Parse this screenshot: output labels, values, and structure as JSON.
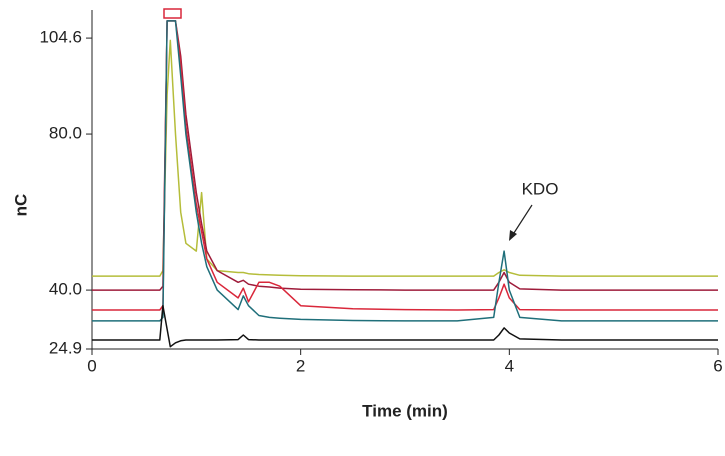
{
  "chart_data": {
    "type": "line",
    "xlabel": "Time (min)",
    "ylabel": "nC",
    "annotation": "KDO",
    "x": [
      0,
      0.65,
      0.68,
      0.72,
      0.75,
      0.8,
      0.85,
      0.9,
      1.0,
      1.05,
      1.1,
      1.2,
      1.4,
      1.45,
      1.5,
      1.6,
      1.7,
      1.8,
      2.0,
      2.5,
      3.0,
      3.5,
      3.85,
      3.9,
      3.95,
      4.0,
      4.1,
      4.5,
      5.0,
      6.0
    ],
    "series": [
      {
        "color": "#b5bd3a",
        "values": [
          43.6,
          43.6,
          45,
          90,
          104,
          80,
          60,
          52,
          50,
          65,
          48,
          45,
          44.5,
          44.5,
          44.2,
          44,
          43.9,
          43.8,
          43.7,
          43.6,
          43.6,
          43.6,
          43.6,
          44.5,
          45.2,
          44.5,
          43.8,
          43.6,
          43.6,
          43.6
        ]
      },
      {
        "color": "#9e1b3a",
        "values": [
          40,
          40,
          41,
          109,
          109,
          109,
          100,
          85,
          65,
          57,
          50,
          45,
          42,
          42.5,
          41.5,
          41,
          40.8,
          40.5,
          40.2,
          40.1,
          40,
          40,
          40,
          42,
          44.5,
          42,
          40.3,
          40,
          40,
          40
        ]
      },
      {
        "color": "#d9273a",
        "values": [
          34.9,
          34.9,
          36,
          109,
          109,
          109,
          98,
          82,
          62,
          55,
          48,
          42,
          38,
          40.5,
          37,
          42,
          42,
          41,
          36,
          35.2,
          35,
          34.9,
          35,
          38,
          41.5,
          38,
          35,
          34.9,
          34.9,
          34.9
        ]
      },
      {
        "color": "#1f6f7a",
        "values": [
          32.1,
          32.1,
          33,
          109,
          109,
          109,
          95,
          80,
          60,
          52,
          46,
          40,
          35,
          38.5,
          36,
          33.5,
          33,
          32.8,
          32.5,
          32.2,
          32.1,
          32.1,
          33,
          42,
          50,
          40,
          33,
          32.1,
          32.1,
          32.1
        ]
      },
      {
        "color": "#111111",
        "values": [
          27.2,
          27.2,
          36,
          30,
          25.5,
          26.5,
          27,
          27.2,
          27.2,
          27.2,
          27.2,
          27.2,
          27.3,
          28.5,
          27.3,
          27.2,
          27.2,
          27.2,
          27.2,
          27.2,
          27.2,
          27.2,
          27.2,
          28.5,
          30.3,
          29,
          27.5,
          27.2,
          27.2,
          27.2
        ]
      }
    ],
    "xlim": [
      0,
      6
    ],
    "xticks": [
      0,
      2,
      4,
      6
    ],
    "ylim": [
      24.9,
      111.8
    ],
    "yticks": [
      24.9,
      {
        "value": 40,
        "label": "40.0"
      },
      {
        "value": 80,
        "label": "80.0"
      },
      104.6
    ]
  }
}
